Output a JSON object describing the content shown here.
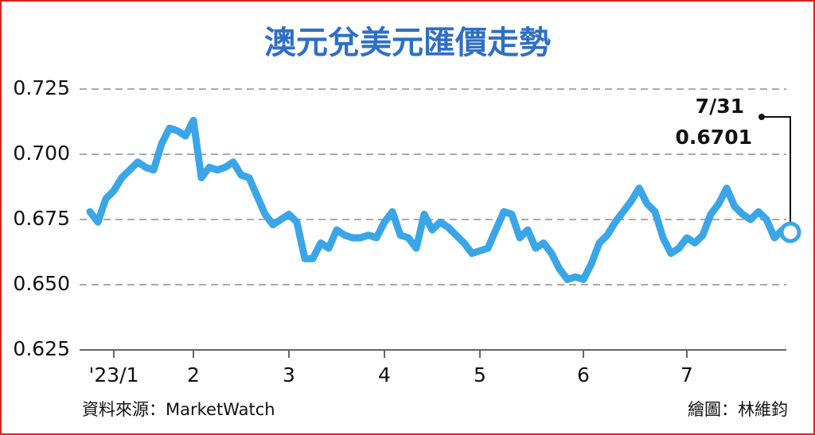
{
  "chart_data": {
    "type": "line",
    "title": "澳元兌美元匯價走勢",
    "categories": [
      null,
      null,
      null,
      "'23/1",
      null,
      null,
      null,
      null,
      null,
      null,
      null,
      null,
      null,
      "2",
      null,
      null,
      null,
      null,
      null,
      null,
      null,
      null,
      null,
      null,
      null,
      "3",
      null,
      null,
      null,
      null,
      null,
      null,
      null,
      null,
      null,
      null,
      null,
      "4",
      null,
      null,
      null,
      null,
      null,
      null,
      null,
      null,
      null,
      null,
      null,
      "5",
      null,
      null,
      null,
      null,
      null,
      null,
      null,
      null,
      null,
      null,
      null,
      null,
      "6",
      null,
      null,
      null,
      null,
      null,
      null,
      null,
      null,
      null,
      null,
      null,
      null,
      "7",
      null,
      null,
      null,
      null,
      null,
      null,
      null,
      null,
      null,
      null,
      null,
      null,
      null
    ],
    "series": [
      {
        "color": "#3aa6e8",
        "values": [
          0.678,
          0.674,
          0.683,
          0.686,
          0.691,
          0.694,
          0.697,
          0.695,
          0.694,
          0.704,
          0.71,
          0.709,
          0.707,
          0.713,
          0.691,
          0.695,
          0.694,
          0.695,
          0.697,
          0.692,
          0.691,
          0.684,
          0.677,
          0.673,
          0.675,
          0.677,
          0.674,
          0.66,
          0.66,
          0.666,
          0.664,
          0.671,
          0.669,
          0.668,
          0.668,
          0.669,
          0.668,
          0.674,
          0.678,
          0.669,
          0.668,
          0.664,
          0.677,
          0.671,
          0.674,
          0.672,
          0.669,
          0.666,
          0.662,
          0.663,
          0.664,
          0.671,
          0.678,
          0.677,
          0.668,
          0.671,
          0.664,
          0.666,
          0.662,
          0.656,
          0.652,
          0.653,
          0.652,
          0.658,
          0.666,
          0.669,
          0.674,
          0.678,
          0.682,
          0.687,
          0.681,
          0.678,
          0.668,
          0.662,
          0.664,
          0.668,
          0.666,
          0.669,
          0.677,
          0.681,
          0.687,
          0.68,
          0.677,
          0.675,
          0.678,
          0.675,
          0.668,
          0.671,
          0.6701
        ]
      }
    ],
    "ylim": [
      0.625,
      0.725
    ],
    "yticks": [
      0.625,
      {
        "value": 0.65,
        "label": "0.650"
      },
      0.675,
      {
        "value": 0.7,
        "label": "0.700"
      },
      0.725
    ],
    "grid": true,
    "annotation": {
      "date": "7/31",
      "value": "0.6701"
    },
    "source": "資料來源：MarketWatch",
    "credit": "繪圖：林維鈞"
  }
}
